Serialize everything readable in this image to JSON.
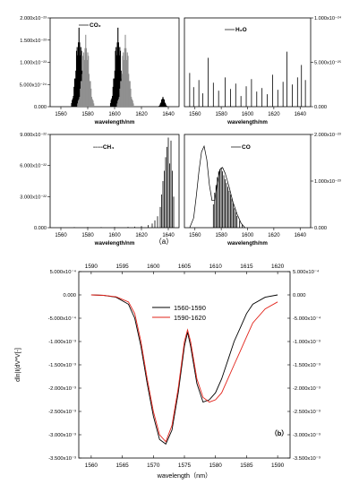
{
  "figure": {
    "top_label": "（a）",
    "bottom_label": "（b）"
  },
  "chart_data": [
    {
      "type": "bar",
      "id": "co2",
      "legend": "CO₂",
      "xlabel": "wavelength/nm",
      "xlim": [
        1552,
        1648
      ],
      "xticks": [
        "1560",
        "1580",
        "1600",
        "1620",
        "1640"
      ],
      "ylim": [
        0,
        2e-23
      ],
      "yaxis_side": "left",
      "yticks": [
        "0.000",
        "5.000x10⁻²⁴",
        "1.000x10⁻²³",
        "1.500x10⁻²³",
        "2.000x10⁻²³"
      ],
      "bands": [
        {
          "center": 1573.5,
          "halfwidth": 5.5,
          "peak": 1.78e-23,
          "color": "#000000"
        },
        {
          "center": 1578.5,
          "halfwidth": 6.0,
          "peak": 1.62e-23,
          "color": "#909090"
        },
        {
          "center": 1602.5,
          "halfwidth": 5.5,
          "peak": 1.78e-23,
          "color": "#000000"
        },
        {
          "center": 1608.0,
          "halfwidth": 6.0,
          "peak": 1.62e-23,
          "color": "#909090"
        },
        {
          "center": 1636.0,
          "halfwidth": 3.0,
          "peak": 2.2e-24,
          "color": "#000000"
        }
      ]
    },
    {
      "type": "bar",
      "id": "h2o",
      "legend": "H₂O",
      "xlabel": "wavelength/nm",
      "xlim": [
        1552,
        1648
      ],
      "xticks": [
        "1560",
        "1580",
        "1600",
        "1620",
        "1640"
      ],
      "ylim": [
        0,
        1e-24
      ],
      "yaxis_side": "right",
      "yticks": [
        "0.000",
        "5.000x10⁻²⁵",
        "1.000x10⁻²⁴"
      ],
      "spikes": [
        [
          1556,
          3.8e-25
        ],
        [
          1559,
          2.2e-25
        ],
        [
          1563,
          3e-25
        ],
        [
          1566,
          1.5e-25
        ],
        [
          1570,
          5.5e-25
        ],
        [
          1574,
          2.7e-25
        ],
        [
          1578,
          1.8e-25
        ],
        [
          1583,
          3.3e-25
        ],
        [
          1587,
          2e-25
        ],
        [
          1591,
          2.6e-25
        ],
        [
          1595,
          1.2e-25
        ],
        [
          1599,
          2.3e-25
        ],
        [
          1603,
          3.1e-25
        ],
        [
          1607,
          1.7e-25
        ],
        [
          1611,
          2.1e-25
        ],
        [
          1615,
          1.4e-25
        ],
        [
          1619,
          3.6e-25
        ],
        [
          1623,
          1.9e-25
        ],
        [
          1627,
          2.8e-25
        ],
        [
          1630,
          6.2e-25
        ],
        [
          1634,
          2.5e-25
        ],
        [
          1638,
          3.3e-25
        ],
        [
          1641,
          4.7e-25
        ],
        [
          1644,
          3e-25
        ]
      ]
    },
    {
      "type": "bar",
      "id": "ch4",
      "legend": "-----CH₄",
      "xlabel": "wavelength/nm",
      "xlim": [
        1552,
        1648
      ],
      "xticks": [
        "1560",
        "1580",
        "1600",
        "1620",
        "1640"
      ],
      "ylim": [
        0,
        9e-22
      ],
      "yaxis_side": "left",
      "yticks": [
        "0.000",
        "3.000x10⁻²²",
        "6.000x10⁻²²",
        "9.000x10⁻²²"
      ],
      "spikes": [
        [
          1560,
          4e-24
        ],
        [
          1570,
          5e-24
        ],
        [
          1580,
          6e-24
        ],
        [
          1590,
          5e-24
        ],
        [
          1600,
          7e-24
        ],
        [
          1610,
          8e-24
        ],
        [
          1615,
          1e-23
        ],
        [
          1620,
          1.5e-23
        ],
        [
          1625,
          2.5e-23
        ],
        [
          1628,
          4e-23
        ],
        [
          1630,
          7e-23
        ],
        [
          1632,
          1.1e-22
        ],
        [
          1634,
          2e-22
        ],
        [
          1635,
          3.2e-22
        ],
        [
          1636,
          4.5e-22
        ],
        [
          1637,
          5.5e-22
        ],
        [
          1638,
          6.8e-22
        ],
        [
          1639,
          7.8e-22
        ],
        [
          1640,
          8.7e-22
        ],
        [
          1641,
          6.2e-22
        ],
        [
          1642,
          8.4e-22
        ],
        [
          1643,
          5.5e-22
        ],
        [
          1644,
          3e-22
        ]
      ]
    },
    {
      "type": "line",
      "id": "co",
      "legend": "CO",
      "xlabel": "wavelength/nm",
      "xlim": [
        1552,
        1648
      ],
      "xticks": [
        "1560",
        "1580",
        "1600",
        "1620",
        "1640"
      ],
      "ylim": [
        0,
        2.4e-23
      ],
      "yaxis_side": "right",
      "yticks": [
        "0.000",
        "1.000x10⁻²³",
        "2.000x10⁻²³"
      ],
      "envelope": [
        [
          1556,
          0.0
        ],
        [
          1559,
          2.5e-24
        ],
        [
          1561,
          8e-24
        ],
        [
          1563,
          1.45e-23
        ],
        [
          1565,
          1.95e-23
        ],
        [
          1567,
          2.1e-23
        ],
        [
          1569,
          1.75e-23
        ],
        [
          1571,
          1.1e-23
        ],
        [
          1573,
          7e-24
        ],
        [
          1575,
          7e-24
        ],
        [
          1577,
          1.15e-23
        ],
        [
          1579,
          1.5e-23
        ],
        [
          1581,
          1.55e-23
        ],
        [
          1583,
          1.4e-23
        ],
        [
          1586,
          1.05e-23
        ],
        [
          1589,
          6.5e-24
        ],
        [
          1592,
          3.5e-24
        ],
        [
          1595,
          1.2e-24
        ],
        [
          1598,
          0.0
        ]
      ],
      "spikes": [
        [
          1574,
          6e-24
        ],
        [
          1575,
          9e-24
        ],
        [
          1576,
          1.1e-23
        ],
        [
          1577,
          1.3e-23
        ],
        [
          1578,
          1.45e-23
        ],
        [
          1579,
          1.5e-23
        ],
        [
          1580,
          1.55e-23
        ],
        [
          1581,
          1.45e-23
        ],
        [
          1582,
          1.35e-23
        ],
        [
          1583,
          1.25e-23
        ],
        [
          1584,
          1.15e-23
        ],
        [
          1585,
          1.05e-23
        ],
        [
          1586,
          9.5e-24
        ],
        [
          1587,
          8.5e-24
        ],
        [
          1588,
          7.5e-24
        ],
        [
          1589,
          6.2e-24
        ],
        [
          1590,
          5e-24
        ],
        [
          1591,
          4e-24
        ],
        [
          1592,
          3e-24
        ],
        [
          1594,
          1.8e-24
        ],
        [
          1596,
          8e-25
        ]
      ]
    },
    {
      "type": "line",
      "id": "deriv",
      "ylabel": "dln|I(dV*V[-]",
      "xlabel": "wavelength（nm）",
      "xlim": [
        1558,
        1592
      ],
      "xticks": [
        "1560",
        "1565",
        "1570",
        "1575",
        "1580",
        "1585",
        "1590"
      ],
      "x2lim": [
        1588,
        1622
      ],
      "x2ticks": [
        "1590",
        "1595",
        "1600",
        "1605",
        "1610",
        "1615",
        "1620"
      ],
      "ylim": [
        -0.0035,
        0.0005
      ],
      "yticks": [
        "-3.500x10⁻³",
        "-3.000x10⁻³",
        "-2.500x10⁻³",
        "-2.000x10⁻³",
        "-1.500x10⁻³",
        "-1.000x10⁻³",
        "-5.000x10⁻⁴",
        "0.000",
        "5.000x10⁻⁴"
      ],
      "yticks_left": [
        "-3.500x10⁻³",
        "-3.000x10⁻³",
        "-2.500x10⁻³",
        "-2.000x10⁻³",
        "-1.500x10⁻³",
        "-1.000x10⁻³",
        "-5.000x10⁻⁴",
        "0.000",
        "5.000x10⁻⁴"
      ],
      "legend_position": "top-center",
      "series": [
        {
          "name": "1560-1590",
          "color": "#000000",
          "points": [
            [
              1560,
              0.0
            ],
            [
              1562,
              -1e-05
            ],
            [
              1564,
              -5e-05
            ],
            [
              1566,
              -0.0002
            ],
            [
              1567,
              -0.0005
            ],
            [
              1568,
              -0.0011
            ],
            [
              1569,
              -0.0019
            ],
            [
              1570,
              -0.0026
            ],
            [
              1571,
              -0.0031
            ],
            [
              1572,
              -0.0032
            ],
            [
              1573,
              -0.0029
            ],
            [
              1574,
              -0.0021
            ],
            [
              1575,
              -0.0011
            ],
            [
              1575.5,
              -0.0008
            ],
            [
              1576,
              -0.0011
            ],
            [
              1577,
              -0.0019
            ],
            [
              1578,
              -0.0023
            ],
            [
              1579,
              -0.00225
            ],
            [
              1580,
              -0.0021
            ],
            [
              1581,
              -0.0018
            ],
            [
              1582,
              -0.0014
            ],
            [
              1583,
              -0.001
            ],
            [
              1584,
              -0.0007
            ],
            [
              1585,
              -0.0004
            ],
            [
              1586,
              -0.0002
            ],
            [
              1588,
              -5e-05
            ],
            [
              1590,
              0.0
            ]
          ]
        },
        {
          "name": "1590-1620",
          "color": "#e2231a",
          "points": [
            [
              1560,
              0.0
            ],
            [
              1562,
              -1e-05
            ],
            [
              1564,
              -4e-05
            ],
            [
              1566,
              -0.00015
            ],
            [
              1567,
              -0.0004
            ],
            [
              1568,
              -0.001
            ],
            [
              1569,
              -0.0018
            ],
            [
              1570,
              -0.0025
            ],
            [
              1571,
              -0.003
            ],
            [
              1572,
              -0.00315
            ],
            [
              1573,
              -0.0028
            ],
            [
              1574,
              -0.002
            ],
            [
              1575,
              -0.001
            ],
            [
              1575.5,
              -0.00075
            ],
            [
              1576,
              -0.001
            ],
            [
              1577,
              -0.0018
            ],
            [
              1578,
              -0.0022
            ],
            [
              1579,
              -0.0023
            ],
            [
              1580,
              -0.00225
            ],
            [
              1581,
              -0.0021
            ],
            [
              1582,
              -0.0018
            ],
            [
              1583,
              -0.0015
            ],
            [
              1584,
              -0.0012
            ],
            [
              1585,
              -0.0009
            ],
            [
              1586,
              -0.0006
            ],
            [
              1588,
              -0.0003
            ],
            [
              1590,
              -0.00015
            ]
          ]
        }
      ]
    }
  ]
}
